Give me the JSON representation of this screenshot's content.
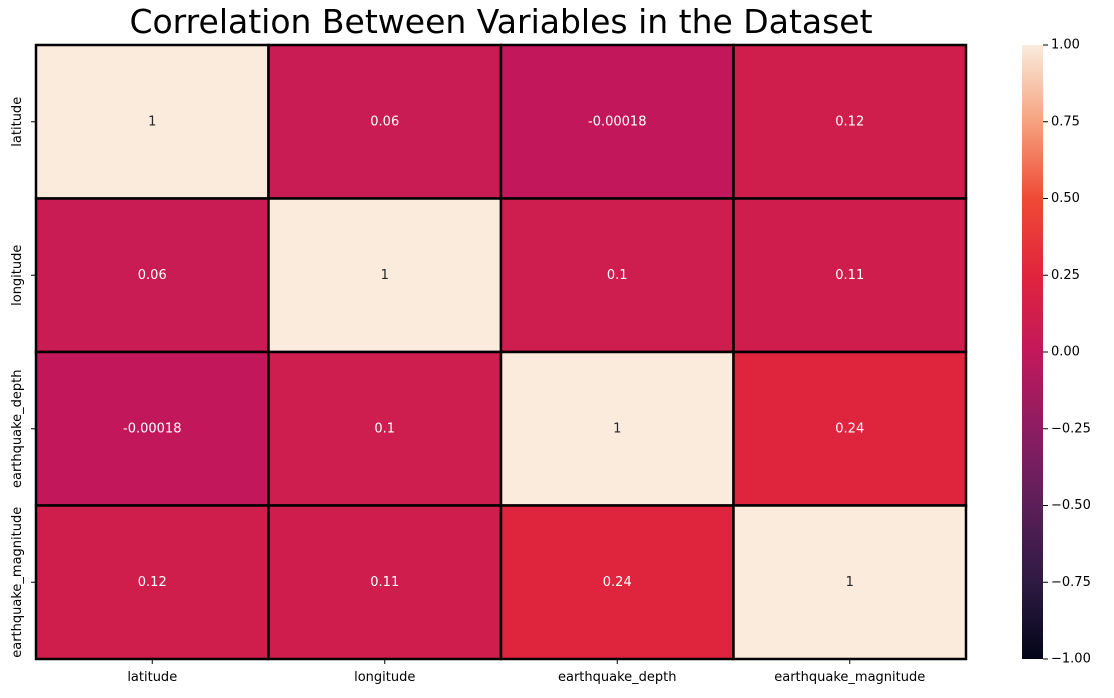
{
  "chart_data": {
    "type": "heatmap",
    "title": "Correlation Between Variables in the Dataset",
    "xlabel": "",
    "ylabel": "",
    "x_labels": [
      "latitude",
      "longitude",
      "earthquake_depth",
      "earthquake_magnitude"
    ],
    "y_labels": [
      "latitude",
      "longitude",
      "earthquake_depth",
      "earthquake_magnitude"
    ],
    "values": [
      [
        1,
        0.06,
        -0.00018,
        0.12
      ],
      [
        0.06,
        1,
        0.1,
        0.11
      ],
      [
        -0.00018,
        0.1,
        1,
        0.24
      ],
      [
        0.12,
        0.11,
        0.24,
        1
      ]
    ],
    "annotations": [
      [
        "1",
        "0.06",
        "-0.00018",
        "0.12"
      ],
      [
        "0.06",
        "1",
        "0.1",
        "0.11"
      ],
      [
        "-0.00018",
        "0.1",
        "1",
        "0.24"
      ],
      [
        "0.12",
        "0.11",
        "0.24",
        "1"
      ]
    ],
    "vmin": -1,
    "vmax": 1,
    "colormap": "rocket",
    "colorbar_ticks": [
      1.0,
      0.75,
      0.5,
      0.25,
      0.0,
      -0.25,
      -0.5,
      -0.75,
      -1.0
    ],
    "colorbar_tick_labels": [
      "1.00",
      "0.75",
      "0.50",
      "0.25",
      "0.00",
      "−0.25",
      "−0.50",
      "−0.75",
      "−1.00"
    ],
    "cell_border_color": "#000000",
    "annotation_color_light": "#ffffff",
    "annotation_color_dark": "#262626",
    "colormap_stops": [
      "#03051a",
      "#2e1a42",
      "#5c1e5a",
      "#8c1d62",
      "#c2185b",
      "#e0243c",
      "#ef4a36",
      "#f6a27e",
      "#faebdd"
    ]
  }
}
